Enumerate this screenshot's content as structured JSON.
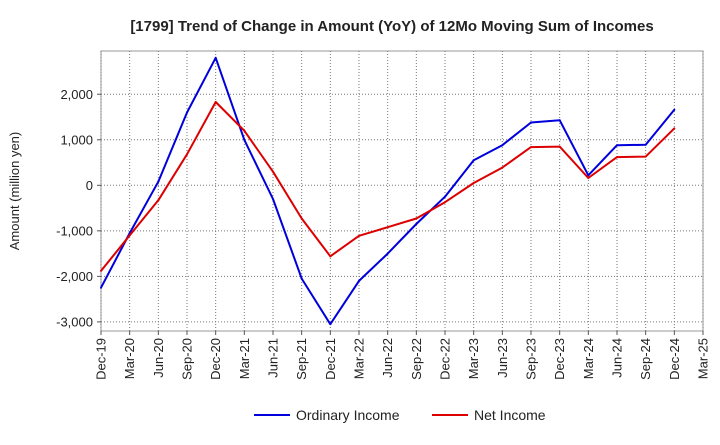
{
  "chart_data": {
    "type": "line",
    "title": "[1799]  Trend of Change in Amount (YoY) of 12Mo Moving Sum of Incomes",
    "xlabel": "",
    "ylabel": "Amount (million yen)",
    "ylim": [
      -3200,
      2950
    ],
    "yticks": [
      2000,
      1000,
      0,
      -1000,
      -2000,
      -3000
    ],
    "ytick_labels": [
      "2,000",
      "1,000",
      "0",
      "-1,000",
      "-2,000",
      "-3,000"
    ],
    "categories": [
      "Dec-19",
      "Mar-20",
      "Jun-20",
      "Sep-20",
      "Dec-20",
      "Mar-21",
      "Jun-21",
      "Sep-21",
      "Dec-21",
      "Mar-22",
      "Jun-22",
      "Sep-22",
      "Dec-22",
      "Mar-23",
      "Jun-23",
      "Sep-23",
      "Dec-23",
      "Mar-24",
      "Jun-24",
      "Sep-24",
      "Dec-24",
      "Mar-25"
    ],
    "grid": true,
    "legend_position": "bottom-center",
    "series": [
      {
        "name": "Ordinary Income",
        "color": "#0000dd",
        "values": [
          -2250,
          -1050,
          80,
          1600,
          2800,
          1000,
          -300,
          -2050,
          -3050,
          -2100,
          -1500,
          -850,
          -250,
          550,
          880,
          1380,
          1430,
          220,
          880,
          890,
          1660,
          null
        ]
      },
      {
        "name": "Net Income",
        "color": "#dd0000",
        "values": [
          -1880,
          -1100,
          -330,
          680,
          1830,
          1200,
          300,
          -730,
          -1560,
          -1110,
          -920,
          -730,
          -370,
          50,
          390,
          840,
          850,
          160,
          620,
          630,
          1250,
          null
        ]
      }
    ]
  }
}
